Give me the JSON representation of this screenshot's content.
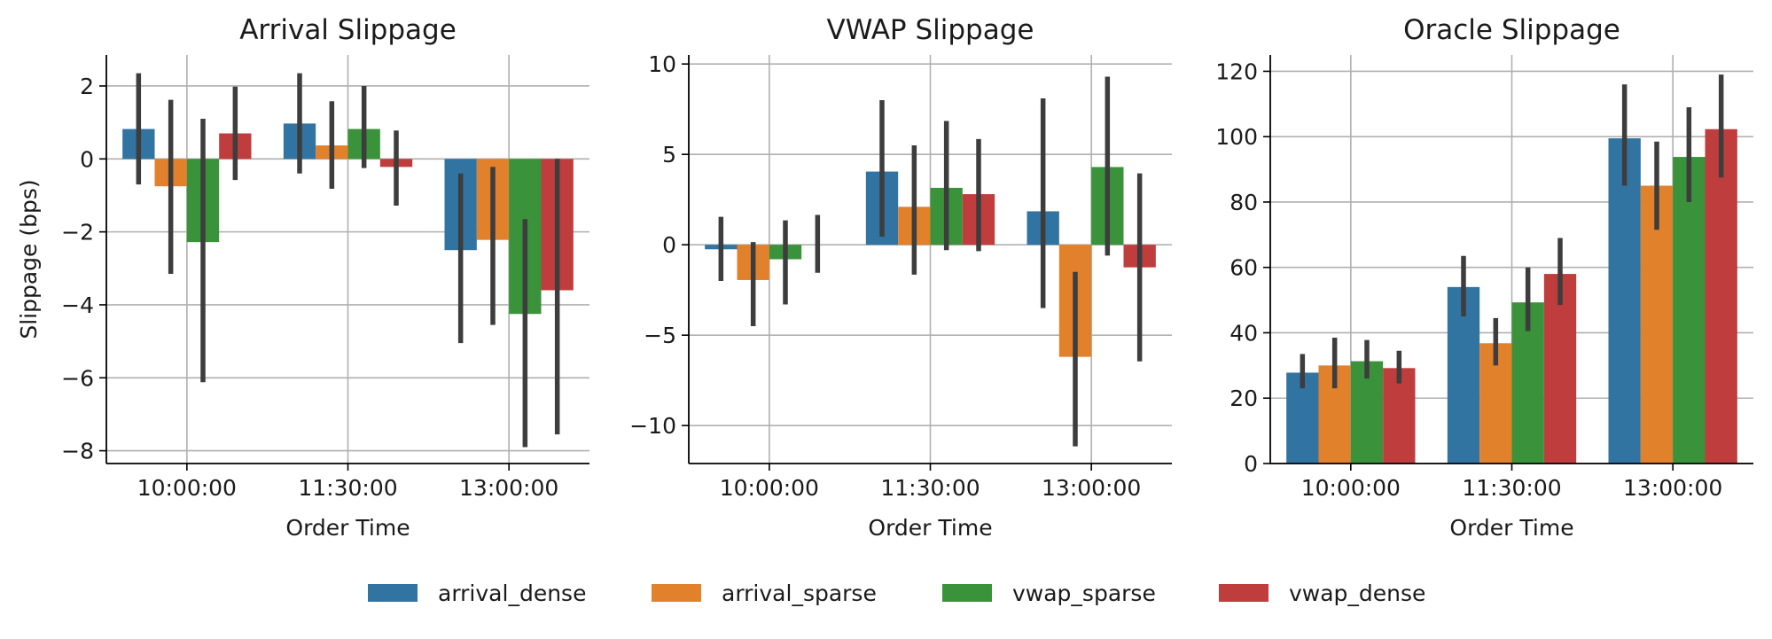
{
  "colors": {
    "arrival_dense": "#3274a1",
    "arrival_sparse": "#e1812c",
    "vwap_sparse": "#3a923a",
    "vwap_dense": "#c03d3e",
    "errorbar": "#3d3d3d",
    "grid": "#b0b0b0"
  },
  "legend": {
    "placement": "bottom-center",
    "entries": [
      "arrival_dense",
      "arrival_sparse",
      "vwap_sparse",
      "vwap_dense"
    ]
  },
  "chart_data": [
    {
      "type": "bar",
      "title": "Arrival Slippage",
      "xlabel": "Order Time",
      "ylabel": "Slippage (bps)",
      "categories": [
        "10:00:00",
        "11:30:00",
        "13:00:00"
      ],
      "ylim": [
        -8.35,
        2.85
      ],
      "yticks": [
        -8,
        -6,
        -4,
        -2,
        0,
        2
      ],
      "grid": true,
      "series": [
        {
          "name": "arrival_dense",
          "values": [
            0.82,
            0.97,
            -2.5
          ],
          "ci_low": [
            -0.7,
            -0.4,
            -5.05
          ],
          "ci_high": [
            2.35,
            2.35,
            -0.4
          ]
        },
        {
          "name": "arrival_sparse",
          "values": [
            -0.75,
            0.37,
            -2.22
          ],
          "ci_low": [
            -3.15,
            -0.82,
            -4.55
          ],
          "ci_high": [
            1.62,
            1.58,
            -0.22
          ]
        },
        {
          "name": "vwap_sparse",
          "values": [
            -2.28,
            0.82,
            -4.25
          ],
          "ci_low": [
            -6.12,
            -0.25,
            -7.9
          ],
          "ci_high": [
            1.1,
            2.0,
            -1.65
          ]
        },
        {
          "name": "vwap_dense",
          "values": [
            0.7,
            -0.22,
            -3.6
          ],
          "ci_low": [
            -0.58,
            -1.28,
            -7.55
          ],
          "ci_high": [
            1.98,
            0.78,
            0.0
          ]
        }
      ]
    },
    {
      "type": "bar",
      "title": "VWAP Slippage",
      "xlabel": "Order Time",
      "ylabel": "",
      "categories": [
        "10:00:00",
        "11:30:00",
        "13:00:00"
      ],
      "ylim": [
        -12.1,
        10.5
      ],
      "yticks": [
        -10,
        -5,
        0,
        5,
        10
      ],
      "grid": true,
      "series": [
        {
          "name": "arrival_dense",
          "values": [
            -0.25,
            4.05,
            1.85
          ],
          "ci_low": [
            -2.0,
            0.45,
            -3.5
          ],
          "ci_high": [
            1.55,
            8.0,
            8.1
          ]
        },
        {
          "name": "arrival_sparse",
          "values": [
            -1.95,
            2.1,
            -6.2
          ],
          "ci_low": [
            -4.5,
            -1.65,
            -11.15
          ],
          "ci_high": [
            0.15,
            5.5,
            -1.5
          ]
        },
        {
          "name": "vwap_sparse",
          "values": [
            -0.8,
            3.15,
            4.3
          ],
          "ci_low": [
            -3.3,
            -0.3,
            -0.6
          ],
          "ci_high": [
            1.35,
            6.85,
            9.3
          ]
        },
        {
          "name": "vwap_dense",
          "values": [
            0.0,
            2.8,
            -1.25
          ],
          "ci_low": [
            -1.55,
            -0.35,
            -6.45
          ],
          "ci_high": [
            1.65,
            5.85,
            3.95
          ]
        }
      ]
    },
    {
      "type": "bar",
      "title": "Oracle Slippage",
      "xlabel": "Order Time",
      "ylabel": "",
      "categories": [
        "10:00:00",
        "11:30:00",
        "13:00:00"
      ],
      "ylim": [
        0,
        125
      ],
      "yticks": [
        0,
        20,
        40,
        60,
        80,
        100,
        120
      ],
      "grid": true,
      "series": [
        {
          "name": "arrival_dense",
          "values": [
            27.8,
            54.0,
            99.5
          ],
          "ci_low": [
            23.0,
            45.0,
            85.0
          ],
          "ci_high": [
            33.5,
            63.5,
            116.0
          ]
        },
        {
          "name": "arrival_sparse",
          "values": [
            30.0,
            36.8,
            85.0
          ],
          "ci_low": [
            23.0,
            30.0,
            71.5
          ],
          "ci_high": [
            38.5,
            44.5,
            98.5
          ]
        },
        {
          "name": "vwap_sparse",
          "values": [
            31.3,
            49.3,
            93.8
          ],
          "ci_low": [
            26.0,
            40.5,
            80.0
          ],
          "ci_high": [
            37.8,
            60.0,
            109.0
          ]
        },
        {
          "name": "vwap_dense",
          "values": [
            29.2,
            58.0,
            102.3
          ],
          "ci_low": [
            24.5,
            48.5,
            87.5
          ],
          "ci_high": [
            34.5,
            69.0,
            119.0
          ]
        }
      ]
    }
  ]
}
